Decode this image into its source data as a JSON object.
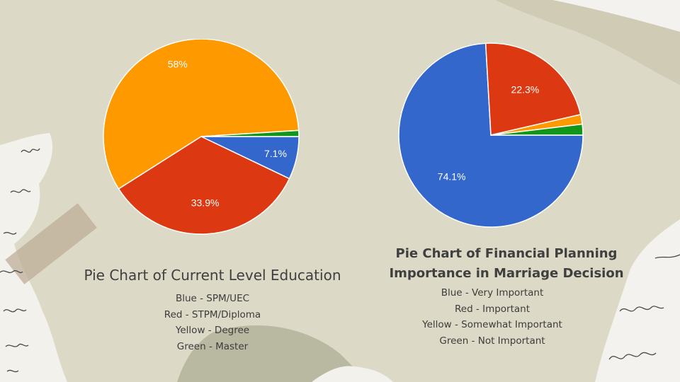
{
  "chart_data": [
    {
      "type": "pie",
      "title": "Pie Chart of Current Level Education",
      "slices": [
        {
          "label": "SPM/UEC",
          "color_name": "Blue",
          "value": 7.1,
          "display": "7.1%",
          "color": "#3467cc"
        },
        {
          "label": "STPM/Diploma",
          "color_name": "Red",
          "value": 33.9,
          "display": "33.9%",
          "color": "#dc3912"
        },
        {
          "label": "Degree",
          "color_name": "Yellow",
          "value": 58,
          "display": "58%",
          "color": "#ff9900"
        },
        {
          "label": "Master",
          "color_name": "Green",
          "value": 1.0,
          "display": "",
          "color": "#109618"
        }
      ],
      "legend": [
        "Blue - SPM/UEC",
        "Red - STPM/Diploma",
        "Yellow - Degree",
        "Green - Master"
      ]
    },
    {
      "type": "pie",
      "title_lines": [
        "Pie Chart of Financial Planning",
        "Importance in Marriage Decision"
      ],
      "slices": [
        {
          "label": "Very Important",
          "color_name": "Blue",
          "value": 74.1,
          "display": "74.1%",
          "color": "#3467cc"
        },
        {
          "label": "Important",
          "color_name": "Red",
          "value": 22.3,
          "display": "22.3%",
          "color": "#dc3912"
        },
        {
          "label": "Somewhat Important",
          "color_name": "Yellow",
          "value": 1.7,
          "display": "",
          "color": "#ff9900"
        },
        {
          "label": "Not Important",
          "color_name": "Green",
          "value": 1.9,
          "display": "",
          "color": "#109618"
        }
      ],
      "legend": [
        "Blue - Very Important",
        "Red - Important",
        "Yellow - Somewhat Important",
        "Green - Not Important"
      ]
    }
  ]
}
